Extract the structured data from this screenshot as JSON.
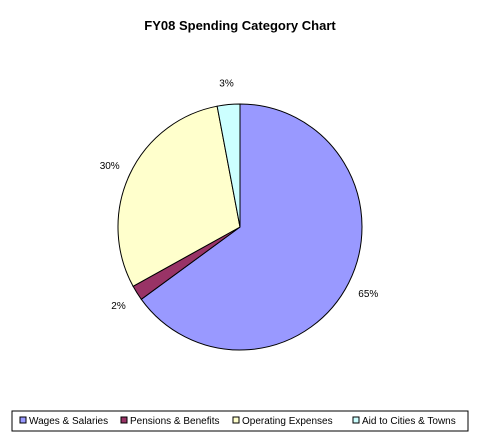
{
  "chart_data": {
    "type": "pie",
    "title": "FY08 Spending Category Chart",
    "legend_position": "bottom",
    "slices": [
      {
        "label": "Wages & Salaries",
        "value": 65,
        "display": "65%",
        "color": "#9999ff"
      },
      {
        "label": "Pensions & Benefits",
        "value": 2,
        "display": "2%",
        "color": "#993366"
      },
      {
        "label": "Operating Expenses",
        "value": 30,
        "display": "30%",
        "color": "#ffffcc"
      },
      {
        "label": "Aid to Cities & Towns",
        "value": 3,
        "display": "3%",
        "color": "#ccffff"
      }
    ]
  }
}
